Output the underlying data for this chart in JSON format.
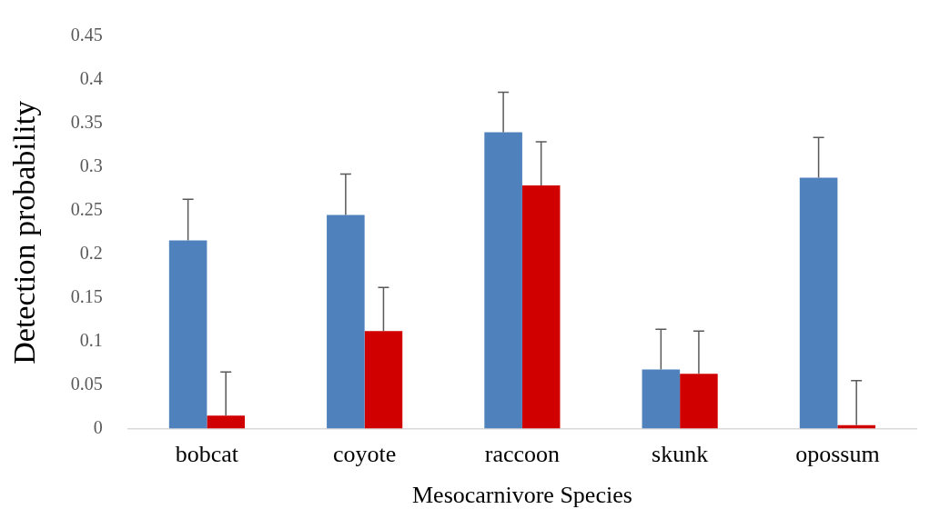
{
  "chart_data": {
    "type": "bar",
    "xlabel": "Mesocarnivore Species",
    "ylabel": "Detection probability",
    "categories": [
      "bobcat",
      "coyote",
      "raccoon",
      "skunk",
      "opossum"
    ],
    "series": [
      {
        "color": "#4f81bd",
        "values": [
          0.216,
          0.245,
          0.34,
          0.068,
          0.288
        ],
        "errors": [
          [
            0.216,
            0.263
          ],
          [
            0.245,
            0.292
          ],
          [
            0.34,
            0.386
          ],
          [
            0.068,
            0.114
          ],
          [
            0.288,
            0.334
          ]
        ]
      },
      {
        "color": "#d00000",
        "values": [
          0.015,
          0.112,
          0.279,
          0.063,
          0.004
        ],
        "errors": [
          [
            0.015,
            0.065
          ],
          [
            0.112,
            0.162
          ],
          [
            0.279,
            0.329
          ],
          [
            0.063,
            0.112
          ],
          [
            0.004,
            0.055
          ]
        ]
      }
    ],
    "ylim": [
      0,
      0.45
    ],
    "yticks": [
      0,
      0.05,
      0.1,
      0.15,
      0.2,
      0.25,
      0.3,
      0.35,
      0.4,
      0.45
    ],
    "grid": false,
    "legend": false
  }
}
